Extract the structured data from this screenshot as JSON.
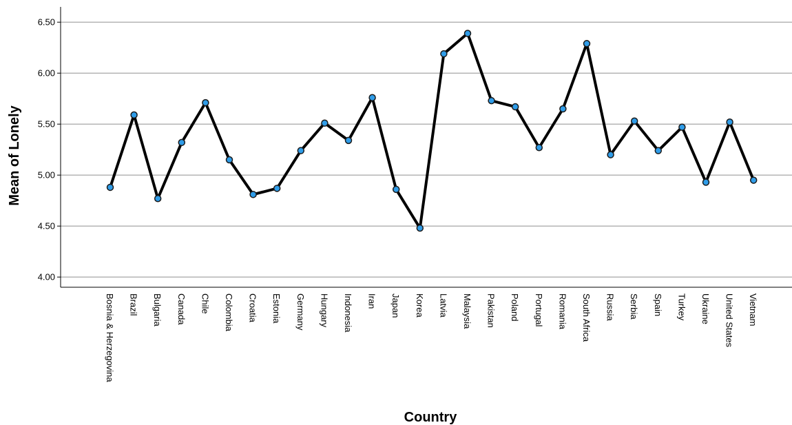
{
  "chart_data": {
    "type": "line",
    "title": "",
    "xlabel": "Country",
    "ylabel": "Mean of Lonely",
    "ylim": [
      3.9,
      6.65
    ],
    "yticks": [
      "4.00",
      "4.50",
      "5.00",
      "5.50",
      "6.00",
      "6.50"
    ],
    "grid": true,
    "categories": [
      "Bosnia & Herzegovina",
      "Brazil",
      "Bulgaria",
      "Canada",
      "Chile",
      "Colombia",
      "Croatia",
      "Estonia",
      "Germany",
      "Hungary",
      "Indonesia",
      "Iran",
      "Japan",
      "Korea",
      "Latvia",
      "Malaysia",
      "Pakistan",
      "Poland",
      "Portugal",
      "Romania",
      "South Africa",
      "Russia",
      "Serbia",
      "Spain",
      "Turkey",
      "Ukraine",
      "United States",
      "Vietnam"
    ],
    "values": [
      4.88,
      5.59,
      4.77,
      5.32,
      5.71,
      5.15,
      4.81,
      4.87,
      5.24,
      5.51,
      5.34,
      5.76,
      4.86,
      4.48,
      6.19,
      6.39,
      5.73,
      5.67,
      5.27,
      5.65,
      6.29,
      5.2,
      5.53,
      5.24,
      5.47,
      4.93,
      5.52,
      4.95
    ],
    "colors": {
      "line": "#000000",
      "marker_fill": "#2f9ce8",
      "marker_stroke": "#1a1a1a",
      "grid": "#b4b4b4",
      "axis": "#000000"
    }
  }
}
